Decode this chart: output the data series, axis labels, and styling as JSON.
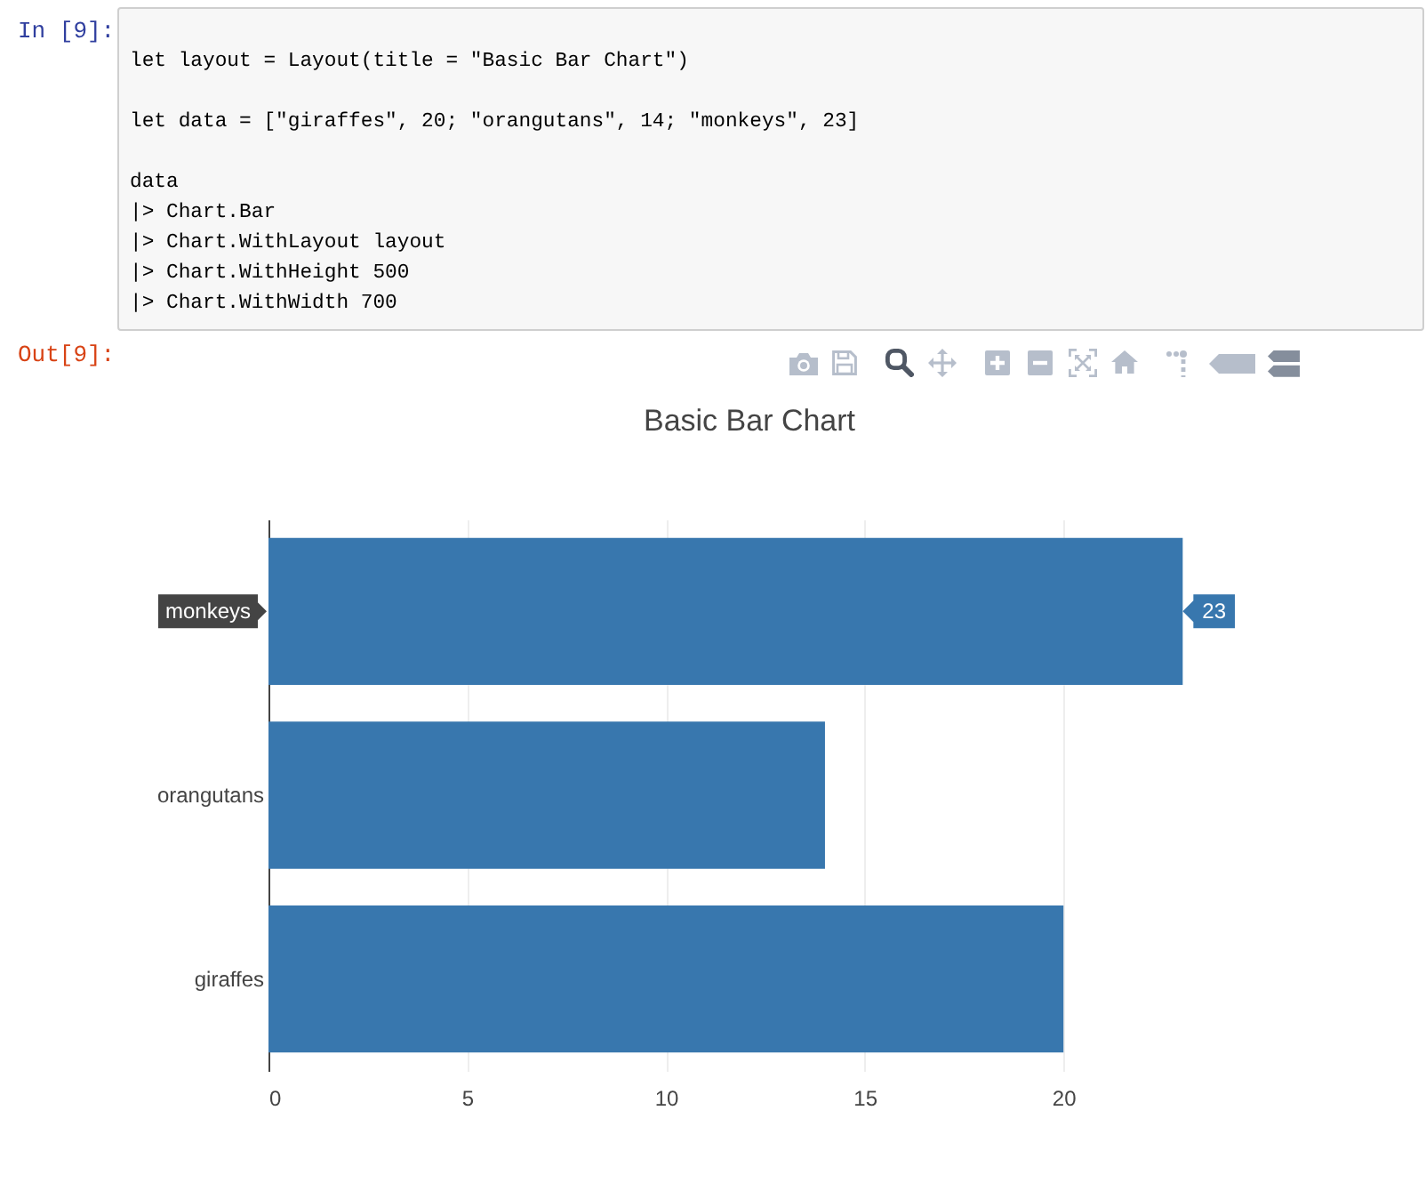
{
  "chart_data": {
    "type": "bar",
    "title": "Basic Bar Chart",
    "orientation": "horizontal",
    "categories": [
      "monkeys",
      "orangutans",
      "giraffes"
    ],
    "values": [
      23,
      14,
      20
    ],
    "color": "#3877ae",
    "value_labels": [
      "23",
      null,
      null
    ],
    "xlim": [
      0,
      24.2
    ],
    "xticks": [
      0,
      5,
      10,
      15,
      20
    ],
    "grid": "x",
    "annotations": [
      "In [9]:",
      "let layout = Layout(title = \"Basic Bar Chart\")\n\nlet data = [\"giraffes\", 20; \"orangutans\", 14; \"monkeys\", 23]\n\ndata\n|> Chart.Bar\n|> Chart.WithLayout layout\n|> Chart.WithHeight 500\n|> Chart.WithWidth 700",
      "Out[9]:"
    ]
  }
}
